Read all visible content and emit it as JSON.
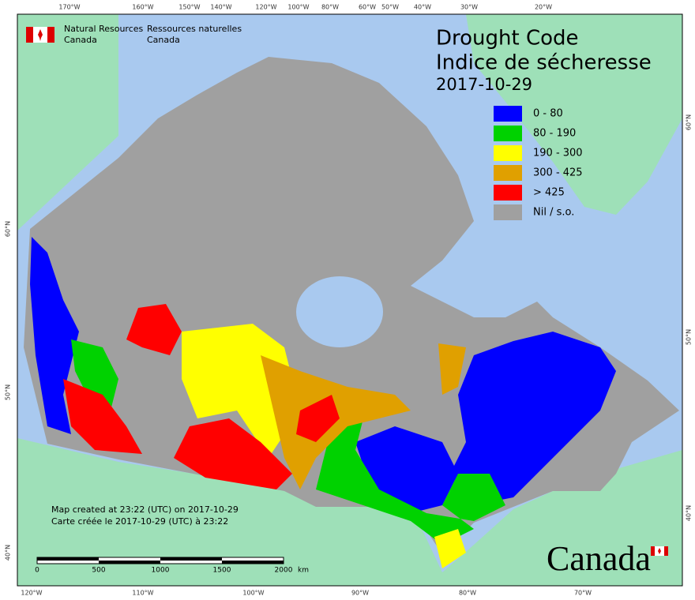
{
  "header": {
    "agency_en": "Natural Resources",
    "agency_en_2": "Canada",
    "agency_fr": "Ressources naturelles",
    "agency_fr_2": "Canada"
  },
  "title": {
    "en": "Drought Code",
    "fr": "Indice de sécheresse",
    "date": "2017-10-29"
  },
  "legend": {
    "items": [
      {
        "label": "0 - 80",
        "color": "#0000ff"
      },
      {
        "label": "80 - 190",
        "color": "#00d200"
      },
      {
        "label": "190 - 300",
        "color": "#ffff00"
      },
      {
        "label": "300 - 425",
        "color": "#e0a000"
      },
      {
        "label": "> 425",
        "color": "#ff0000"
      },
      {
        "label": "Nil / s.o.",
        "color": "#a0a0a0"
      }
    ]
  },
  "credits": [
    "Map created at 23:22 (UTC) on 2017-10-29",
    "Carte créée le 2017-10-29 (UTC) à 23:22"
  ],
  "scale_bar": {
    "labels": [
      "0",
      "500",
      "1000",
      "1500",
      "2000"
    ],
    "unit": "km"
  },
  "graticule": {
    "top": [
      "170°W",
      "160°W",
      "150°W",
      "140°W",
      "120°W",
      "100°W",
      "80°W",
      "60°W",
      "50°W",
      "40°W",
      "30°W",
      "20°W"
    ],
    "bottom": [
      "120°W",
      "110°W",
      "100°W",
      "90°W",
      "80°W",
      "70°W"
    ],
    "left": [
      "60°N",
      "50°N",
      "40°N"
    ],
    "right": [
      "60°N",
      "50°N",
      "40°N"
    ]
  },
  "wordmark": "Canada"
}
